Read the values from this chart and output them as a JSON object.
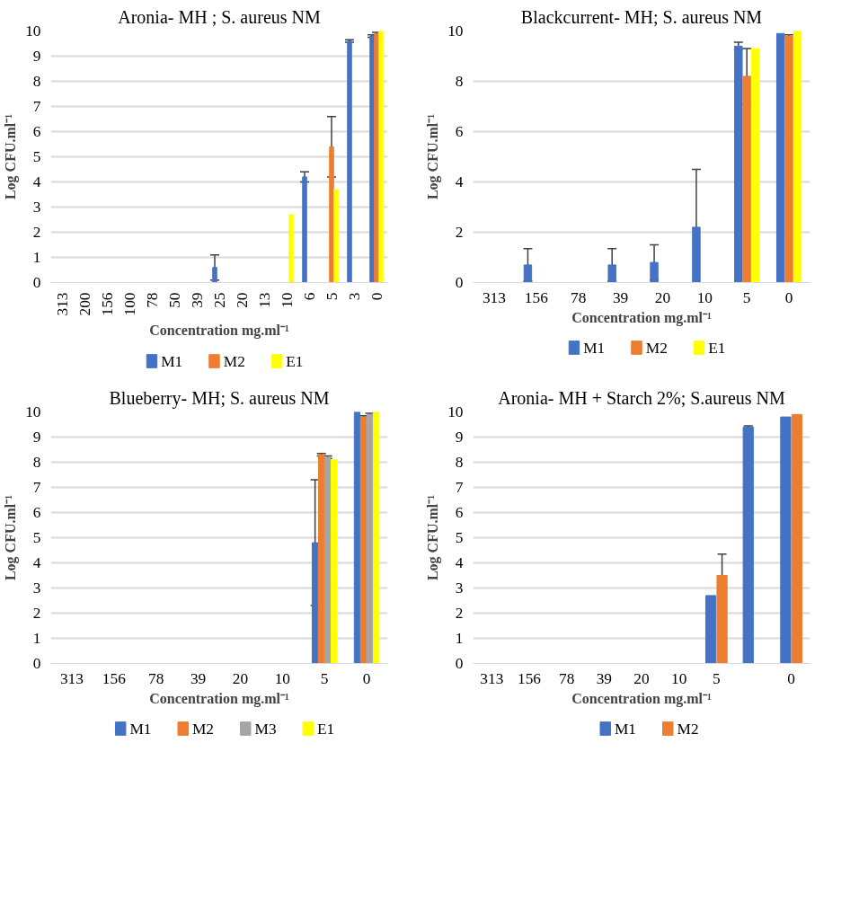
{
  "chart_data": [
    {
      "type": "bar",
      "title": "Aronia- MH ; S. aureus NM",
      "xlabel": "Concentration mg.ml⁻¹",
      "ylabel": "Log CFU.ml⁻¹",
      "categories": [
        "313",
        "200",
        "156",
        "100",
        "78",
        "50",
        "39",
        "25",
        "20",
        "13",
        "10",
        "6",
        "5",
        "3",
        "0"
      ],
      "ylim": [
        0,
        10
      ],
      "yticks": [
        0,
        1,
        2,
        3,
        4,
        5,
        6,
        7,
        8,
        9,
        10
      ],
      "grid": "y",
      "legend": "bottom",
      "series": [
        {
          "name": "M1",
          "color": "#4472c4",
          "values": [
            0,
            0,
            0,
            0,
            0,
            0,
            0,
            0.6,
            0,
            0,
            0,
            4.2,
            0,
            9.6,
            9.8
          ],
          "errors": [
            null,
            null,
            null,
            null,
            null,
            null,
            null,
            0.5,
            null,
            null,
            null,
            0.2,
            null,
            0.05,
            0.05
          ]
        },
        {
          "name": "M2",
          "color": "#ed7d31",
          "values": [
            0,
            0,
            0,
            0,
            0,
            0,
            0,
            0,
            0,
            0,
            0,
            0,
            5.4,
            0,
            9.9
          ],
          "errors": [
            null,
            null,
            null,
            null,
            null,
            null,
            null,
            null,
            null,
            null,
            null,
            null,
            1.2,
            null,
            0.05
          ]
        },
        {
          "name": "E1",
          "color": "#ffff00",
          "values": [
            0,
            0,
            0,
            0,
            0,
            0,
            0,
            0,
            0,
            0,
            2.7,
            0,
            3.7,
            0,
            10.0
          ]
        }
      ]
    },
    {
      "type": "bar",
      "title": "Blackcurrent- MH; S. aureus NM",
      "xlabel": "Concentration mg.ml⁻¹",
      "ylabel": "Log CFU.ml⁻¹",
      "categories": [
        "313",
        "156",
        "78",
        "39",
        "20",
        "10",
        "5",
        "0"
      ],
      "ylim": [
        0,
        10
      ],
      "yticks": [
        0,
        2,
        4,
        6,
        8,
        10
      ],
      "grid": "y",
      "legend": "bottom",
      "series": [
        {
          "name": "M1",
          "color": "#4472c4",
          "values": [
            0,
            0.7,
            0,
            0.7,
            0.8,
            2.2,
            9.4,
            9.9
          ],
          "errors": [
            null,
            0.65,
            null,
            0.65,
            0.7,
            2.3,
            0.15,
            null
          ]
        },
        {
          "name": "M2",
          "color": "#ed7d31",
          "values": [
            0,
            0,
            0,
            0,
            0,
            0,
            8.2,
            9.8
          ],
          "errors": [
            null,
            null,
            null,
            null,
            null,
            null,
            1.1,
            0.05
          ]
        },
        {
          "name": "E1",
          "color": "#ffff00",
          "values": [
            0,
            0,
            0,
            0,
            0,
            0,
            9.3,
            10.0
          ]
        }
      ]
    },
    {
      "type": "bar",
      "title": "Blueberry- MH; S. aureus NM",
      "xlabel": "Concentration mg.ml⁻¹",
      "ylabel": "Log CFU.ml⁻¹",
      "categories": [
        "313",
        "156",
        "78",
        "39",
        "20",
        "10",
        "5",
        "0"
      ],
      "ylim": [
        0,
        10
      ],
      "yticks": [
        0,
        1,
        2,
        3,
        4,
        5,
        6,
        7,
        8,
        9,
        10
      ],
      "grid": "y",
      "legend": "bottom",
      "series": [
        {
          "name": "M1",
          "color": "#4472c4",
          "values": [
            0,
            0,
            0,
            0,
            0,
            0,
            4.8,
            10.0
          ],
          "errors": [
            null,
            null,
            null,
            null,
            null,
            null,
            2.5,
            null
          ]
        },
        {
          "name": "M2",
          "color": "#ed7d31",
          "values": [
            0,
            0,
            0,
            0,
            0,
            0,
            8.3,
            9.8
          ],
          "errors": [
            null,
            null,
            null,
            null,
            null,
            null,
            0.05,
            0.05
          ]
        },
        {
          "name": "M3",
          "color": "#a5a5a5",
          "values": [
            0,
            0,
            0,
            0,
            0,
            0,
            8.2,
            9.9
          ],
          "errors": [
            null,
            null,
            null,
            null,
            null,
            null,
            0.05,
            0.05
          ]
        },
        {
          "name": "E1",
          "color": "#ffff00",
          "values": [
            0,
            0,
            0,
            0,
            0,
            0,
            8.1,
            10.0
          ]
        }
      ]
    },
    {
      "type": "bar",
      "title": "Aronia- MH + Starch 2%; S.aureus NM",
      "xlabel": "Concentration mg.ml⁻¹",
      "ylabel": "Log CFU.ml⁻¹",
      "categories": [
        "313",
        "156",
        "78",
        "39",
        "20",
        "10",
        "5",
        null,
        "0"
      ],
      "ylim": [
        0,
        10
      ],
      "yticks": [
        0,
        1,
        2,
        3,
        4,
        5,
        6,
        7,
        8,
        9,
        10
      ],
      "grid": "y",
      "legend": "bottom",
      "series": [
        {
          "name": "M1",
          "color": "#4472c4",
          "values": [
            0,
            0,
            0,
            0,
            0,
            0,
            2.7,
            9.4,
            9.8
          ],
          "errors": [
            null,
            null,
            null,
            null,
            null,
            null,
            null,
            0.05,
            null
          ]
        },
        {
          "name": "M2",
          "color": "#ed7d31",
          "values": [
            0,
            0,
            0,
            0,
            0,
            0,
            3.5,
            0,
            9.9
          ],
          "errors": [
            null,
            null,
            null,
            null,
            null,
            null,
            0.85,
            null,
            null
          ]
        }
      ]
    }
  ]
}
